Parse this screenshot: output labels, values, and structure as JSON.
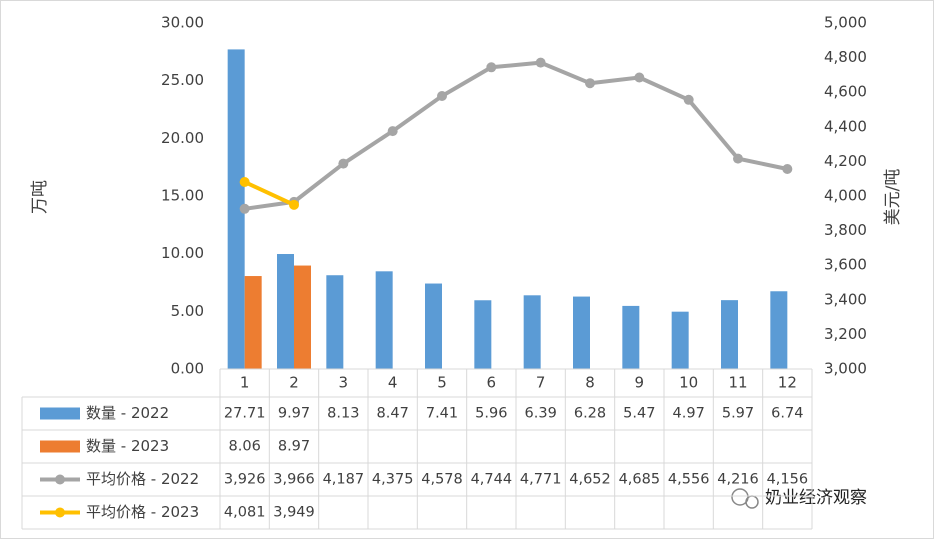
{
  "chart_data": {
    "type": "bar",
    "categories": [
      "1",
      "2",
      "3",
      "4",
      "5",
      "6",
      "7",
      "8",
      "9",
      "10",
      "11",
      "12"
    ],
    "ylabel": "万吨",
    "y2label": "美元/吨",
    "ylim": [
      0,
      30
    ],
    "yticks": [
      {
        "value": 0,
        "label": "0.00"
      },
      {
        "value": 5,
        "label": "5.00"
      },
      {
        "value": 10,
        "label": "10.00"
      },
      {
        "value": 15,
        "label": "15.00"
      },
      {
        "value": 20,
        "label": "20.00"
      },
      {
        "value": 25,
        "label": "25.00"
      },
      {
        "value": 30,
        "label": "30.00"
      }
    ],
    "y2lim": [
      3000,
      5000
    ],
    "y2ticks": [
      {
        "value": 3000,
        "label": "3,000"
      },
      {
        "value": 3200,
        "label": "3,200"
      },
      {
        "value": 3400,
        "label": "3,400"
      },
      {
        "value": 3600,
        "label": "3,600"
      },
      {
        "value": 3800,
        "label": "3,800"
      },
      {
        "value": 4000,
        "label": "4,000"
      },
      {
        "value": 4200,
        "label": "4,200"
      },
      {
        "value": 4400,
        "label": "4,400"
      },
      {
        "value": 4600,
        "label": "4,600"
      },
      {
        "value": 4800,
        "label": "4,800"
      },
      {
        "value": 5000,
        "label": "5,000"
      }
    ],
    "grid": false,
    "data_table": true,
    "series": [
      {
        "name": "数量 - 2022",
        "type": "bar",
        "color": "#5b9bd5",
        "values": [
          27.71,
          9.97,
          8.13,
          8.47,
          7.41,
          5.96,
          6.39,
          6.28,
          5.47,
          4.97,
          5.97,
          6.74
        ]
      },
      {
        "name": "数量 - 2023",
        "type": "bar",
        "color": "#ed7d31",
        "values": [
          8.06,
          8.97,
          null,
          null,
          null,
          null,
          null,
          null,
          null,
          null,
          null,
          null
        ]
      },
      {
        "name": "平均价格 - 2022",
        "type": "line",
        "axis": "y2",
        "color": "#a5a5a5",
        "values": [
          3926,
          3966,
          4187,
          4375,
          4578,
          4744,
          4771,
          4652,
          4685,
          4556,
          4216,
          4156
        ],
        "value_labels": [
          "3,926",
          "3,966",
          "4,187",
          "4,375",
          "4,578",
          "4,744",
          "4,771",
          "4,652",
          "4,685",
          "4,556",
          "4,216",
          "4,156"
        ]
      },
      {
        "name": "平均价格 - 2023",
        "type": "line",
        "axis": "y2",
        "color": "#ffc000",
        "values": [
          4081,
          3949,
          null,
          null,
          null,
          null,
          null,
          null,
          null,
          null,
          null,
          null
        ],
        "value_labels": [
          "4,081",
          "3,949",
          null,
          null,
          null,
          null,
          null,
          null,
          null,
          null,
          null,
          null
        ]
      }
    ],
    "watermark": "奶业经济观察"
  }
}
